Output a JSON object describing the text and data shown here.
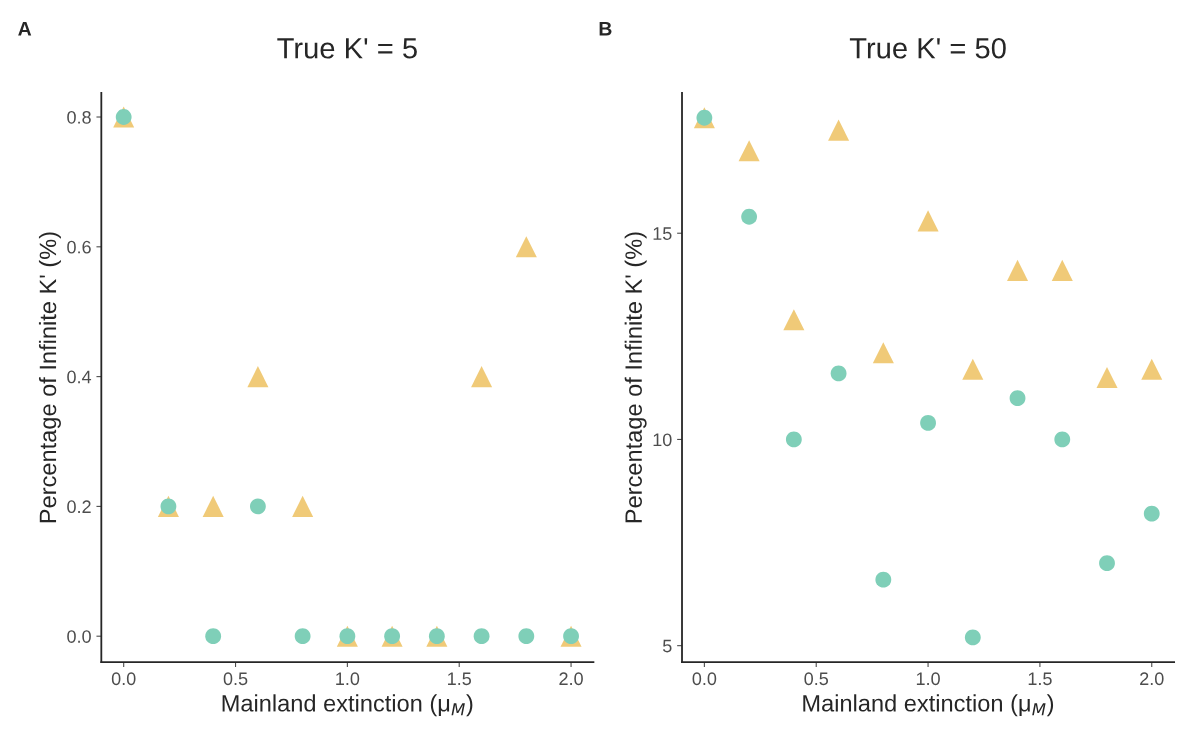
{
  "chart_data": [
    {
      "type": "scatter",
      "title": "True K' = 5",
      "xlabel": "Mainland extinction (μ$_{M}$)",
      "ylabel": "Percentage of Infinite K' (%)",
      "annotations": [
        "A"
      ],
      "x": [
        0.0,
        0.2,
        0.4,
        0.6,
        0.8,
        1.0,
        1.2,
        1.4,
        1.6,
        1.8,
        2.0
      ],
      "series": [
        {
          "color": "#f0ca78",
          "marker": "triangle",
          "values": [
            0.8,
            0.2,
            0.2,
            0.4,
            0.2,
            0.0,
            0.0,
            0.0,
            0.4,
            0.6,
            0.0
          ]
        },
        {
          "color": "#7fcfb8",
          "marker": "circle",
          "values": [
            0.8,
            0.2,
            0.0,
            0.2,
            0.0,
            0.0,
            0.0,
            0.0,
            0.0,
            0.0,
            0.0
          ]
        }
      ],
      "xlim": [
        -0.1,
        2.1
      ],
      "xticks": [
        {
          "value": 0,
          "label": "0.0"
        },
        {
          "value": 0.5,
          "label": "0.5"
        },
        {
          "value": 1,
          "label": "1.0"
        },
        {
          "value": 1.5,
          "label": "1.5"
        },
        {
          "value": 2,
          "label": "2.0"
        }
      ],
      "ylim": [
        -0.04,
        0.837
      ],
      "yticks": [
        {
          "value": 0,
          "label": "0.0"
        },
        0.2,
        0.4,
        0.6,
        0.8
      ],
      "grid": false,
      "legend": false
    },
    {
      "type": "scatter",
      "title": "True K' = 50",
      "xlabel": "Mainland extinction (μ$_{M}$)",
      "ylabel": "Percentage of Infinite K' (%)",
      "annotations": [
        "B"
      ],
      "x": [
        0.0,
        0.2,
        0.4,
        0.6,
        0.8,
        1.0,
        1.2,
        1.4,
        1.6,
        1.8,
        2.0
      ],
      "series": [
        {
          "color": "#f0ca78",
          "marker": "triangle",
          "values": [
            17.8,
            17.0,
            12.9,
            17.5,
            12.1,
            15.3,
            11.7,
            14.1,
            14.1,
            11.5,
            11.7
          ]
        },
        {
          "color": "#7fcfb8",
          "marker": "circle",
          "values": [
            17.8,
            15.4,
            10.0,
            11.6,
            6.6,
            10.4,
            5.2,
            11.0,
            10.0,
            7.0,
            8.2
          ]
        }
      ],
      "xlim": [
        -0.1,
        2.1
      ],
      "xticks": [
        {
          "value": 0,
          "label": "0.0"
        },
        {
          "value": 0.5,
          "label": "0.5"
        },
        {
          "value": 1,
          "label": "1.0"
        },
        {
          "value": 1.5,
          "label": "1.5"
        },
        {
          "value": 2,
          "label": "2.0"
        }
      ],
      "ylim": [
        4.6,
        18.4
      ],
      "yticks": [
        5,
        10,
        15
      ],
      "grid": false,
      "legend": false
    }
  ]
}
